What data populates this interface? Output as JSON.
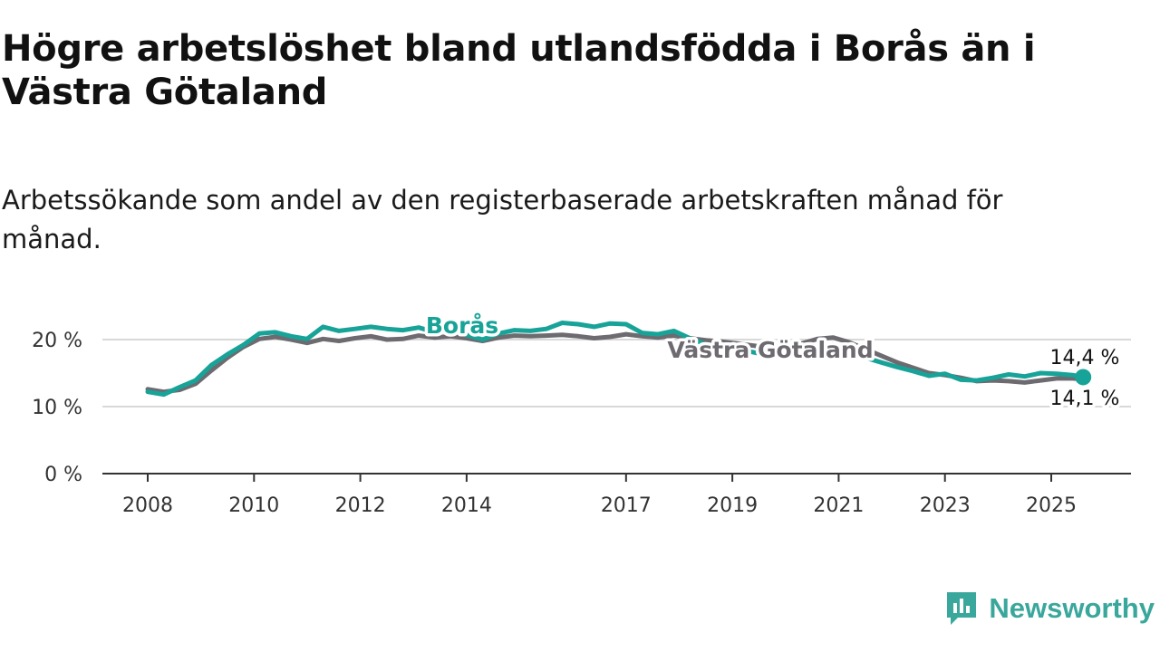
{
  "title": "Högre arbetslöshet bland utlandsfödda i Borås än i Västra Götaland",
  "subtitle": "Arbetssökande som andel av den registerbaserade arbetskraften månad för månad.",
  "brand": {
    "name": "Newsworthy",
    "icon": "newsworthy-logo-icon"
  },
  "colors": {
    "boras": "#17a398",
    "vgr": "#6d6a70",
    "grid": "#d9d9d9",
    "axis": "#333333"
  },
  "chart_data": {
    "type": "line",
    "ylim": [
      0,
      25
    ],
    "xlim": [
      2008,
      2026.5
    ],
    "y_ticks": [
      {
        "value": 0,
        "label": "0 %"
      },
      {
        "value": 10,
        "label": "10 %"
      },
      {
        "value": 20,
        "label": "20 %"
      }
    ],
    "x_ticks": [
      {
        "value": 2008,
        "label": "2008"
      },
      {
        "value": 2010,
        "label": "2010"
      },
      {
        "value": 2012,
        "label": "2012"
      },
      {
        "value": 2014,
        "label": "2014"
      },
      {
        "value": 2017,
        "label": "2017"
      },
      {
        "value": 2019,
        "label": "2019"
      },
      {
        "value": 2021,
        "label": "2021"
      },
      {
        "value": 2023,
        "label": "2023"
      },
      {
        "value": 2025,
        "label": "2025"
      }
    ],
    "series": [
      {
        "name": "Västra Götaland",
        "color": "#6d6a70",
        "end_label": "14,1 %",
        "points": [
          [
            2008.0,
            12.6
          ],
          [
            2008.3,
            12.2
          ],
          [
            2008.6,
            12.5
          ],
          [
            2008.9,
            13.4
          ],
          [
            2009.2,
            15.4
          ],
          [
            2009.5,
            17.3
          ],
          [
            2009.8,
            18.9
          ],
          [
            2010.1,
            20.1
          ],
          [
            2010.4,
            20.4
          ],
          [
            2010.7,
            20.0
          ],
          [
            2011.0,
            19.5
          ],
          [
            2011.3,
            20.1
          ],
          [
            2011.6,
            19.8
          ],
          [
            2011.9,
            20.2
          ],
          [
            2012.2,
            20.5
          ],
          [
            2012.5,
            20.0
          ],
          [
            2012.8,
            20.1
          ],
          [
            2013.1,
            20.6
          ],
          [
            2013.4,
            20.3
          ],
          [
            2013.7,
            20.5
          ],
          [
            2014.0,
            20.2
          ],
          [
            2014.3,
            19.8
          ],
          [
            2014.6,
            20.3
          ],
          [
            2014.9,
            20.6
          ],
          [
            2015.2,
            20.5
          ],
          [
            2015.5,
            20.6
          ],
          [
            2015.8,
            20.7
          ],
          [
            2016.1,
            20.5
          ],
          [
            2016.4,
            20.2
          ],
          [
            2016.7,
            20.4
          ],
          [
            2017.0,
            20.8
          ],
          [
            2017.3,
            20.5
          ],
          [
            2017.6,
            20.3
          ],
          [
            2017.9,
            20.6
          ],
          [
            2018.2,
            20.2
          ],
          [
            2018.5,
            19.9
          ],
          [
            2018.8,
            19.7
          ],
          [
            2019.1,
            19.4
          ],
          [
            2019.4,
            19.1
          ],
          [
            2019.7,
            18.8
          ],
          [
            2020.0,
            19.0
          ],
          [
            2020.3,
            19.4
          ],
          [
            2020.6,
            20.1
          ],
          [
            2020.9,
            20.3
          ],
          [
            2021.2,
            19.6
          ],
          [
            2021.5,
            18.6
          ],
          [
            2021.8,
            17.6
          ],
          [
            2022.1,
            16.6
          ],
          [
            2022.4,
            15.8
          ],
          [
            2022.7,
            15.0
          ],
          [
            2023.0,
            14.7
          ],
          [
            2023.3,
            14.3
          ],
          [
            2023.6,
            13.8
          ],
          [
            2023.9,
            13.9
          ],
          [
            2024.2,
            13.8
          ],
          [
            2024.5,
            13.6
          ],
          [
            2024.8,
            13.9
          ],
          [
            2025.1,
            14.2
          ],
          [
            2025.4,
            14.2
          ],
          [
            2025.6,
            14.1
          ]
        ]
      },
      {
        "name": "Borås",
        "color": "#17a398",
        "end_label": "14,4 %",
        "points": [
          [
            2008.0,
            12.2
          ],
          [
            2008.3,
            11.8
          ],
          [
            2008.6,
            12.9
          ],
          [
            2008.9,
            13.9
          ],
          [
            2009.2,
            16.2
          ],
          [
            2009.5,
            17.8
          ],
          [
            2009.8,
            19.2
          ],
          [
            2010.1,
            20.9
          ],
          [
            2010.4,
            21.1
          ],
          [
            2010.7,
            20.5
          ],
          [
            2011.0,
            20.1
          ],
          [
            2011.3,
            21.9
          ],
          [
            2011.6,
            21.3
          ],
          [
            2011.9,
            21.6
          ],
          [
            2012.2,
            21.9
          ],
          [
            2012.5,
            21.6
          ],
          [
            2012.8,
            21.4
          ],
          [
            2013.1,
            21.8
          ],
          [
            2013.4,
            21.1
          ],
          [
            2013.7,
            21.3
          ],
          [
            2014.0,
            20.7
          ],
          [
            2014.3,
            20.0
          ],
          [
            2014.6,
            20.9
          ],
          [
            2014.9,
            21.4
          ],
          [
            2015.2,
            21.3
          ],
          [
            2015.5,
            21.6
          ],
          [
            2015.8,
            22.5
          ],
          [
            2016.1,
            22.3
          ],
          [
            2016.4,
            21.9
          ],
          [
            2016.7,
            22.4
          ],
          [
            2017.0,
            22.3
          ],
          [
            2017.3,
            21.0
          ],
          [
            2017.6,
            20.8
          ],
          [
            2017.9,
            21.3
          ],
          [
            2018.2,
            20.2
          ],
          [
            2018.5,
            19.3
          ],
          [
            2018.8,
            18.9
          ],
          [
            2019.1,
            18.6
          ],
          [
            2019.4,
            18.1
          ],
          [
            2019.7,
            17.6
          ],
          [
            2020.0,
            17.9
          ],
          [
            2020.3,
            18.5
          ],
          [
            2020.6,
            19.0
          ],
          [
            2020.9,
            19.3
          ],
          [
            2021.2,
            18.3
          ],
          [
            2021.5,
            17.3
          ],
          [
            2021.8,
            16.6
          ],
          [
            2022.1,
            15.9
          ],
          [
            2022.4,
            15.3
          ],
          [
            2022.7,
            14.6
          ],
          [
            2023.0,
            14.9
          ],
          [
            2023.3,
            14.0
          ],
          [
            2023.6,
            13.9
          ],
          [
            2023.9,
            14.3
          ],
          [
            2024.2,
            14.8
          ],
          [
            2024.5,
            14.5
          ],
          [
            2024.8,
            15.0
          ],
          [
            2025.1,
            14.9
          ],
          [
            2025.4,
            14.7
          ],
          [
            2025.6,
            14.4
          ]
        ]
      }
    ]
  }
}
